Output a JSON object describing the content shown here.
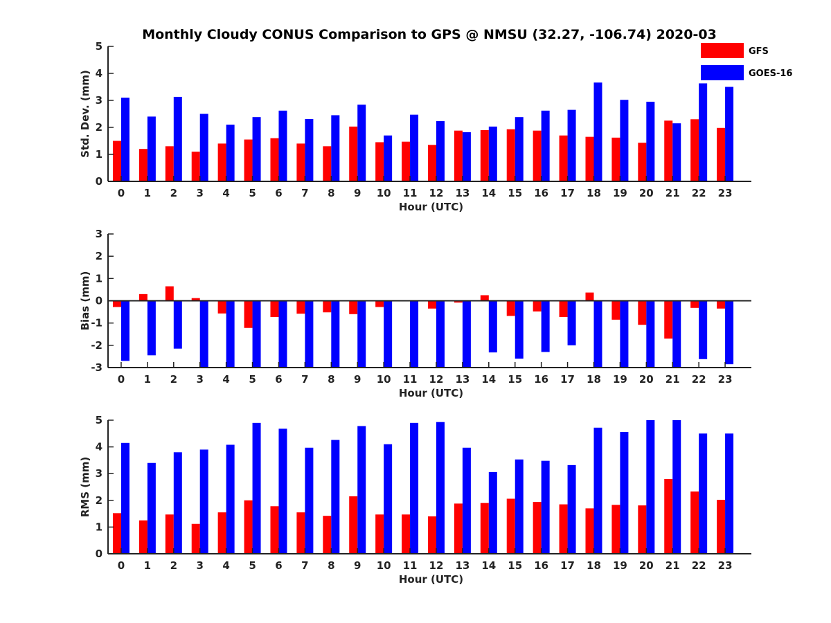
{
  "colors": {
    "gfs": "#ff0000",
    "goes": "#0000ff",
    "axis": "#222222"
  },
  "chart_data": [
    {
      "type": "bar",
      "title": "Monthly Cloudy CONUS Comparison to GPS @ NMSU (32.27, -106.74) 2020-03",
      "xlabel": "Hour (UTC)",
      "ylabel": "Std. Dev. (mm)",
      "ylim": [
        0,
        5
      ],
      "yticks": [
        0,
        1,
        2,
        3,
        4,
        5
      ],
      "categories": [
        "0",
        "1",
        "2",
        "3",
        "4",
        "5",
        "6",
        "7",
        "8",
        "9",
        "10",
        "11",
        "12",
        "13",
        "14",
        "15",
        "16",
        "17",
        "18",
        "19",
        "20",
        "21",
        "22",
        "23"
      ],
      "legend": "top-right",
      "series": [
        {
          "name": "GFS",
          "color": "#ff0000",
          "values": [
            1.5,
            1.2,
            1.3,
            1.1,
            1.4,
            1.55,
            1.6,
            1.4,
            1.3,
            2.03,
            1.45,
            1.47,
            1.35,
            1.88,
            1.9,
            1.93,
            1.88,
            1.7,
            1.65,
            1.62,
            1.43,
            2.25,
            2.3,
            1.98
          ]
        },
        {
          "name": "GOES-16",
          "color": "#0000ff",
          "values": [
            3.1,
            2.4,
            3.13,
            2.5,
            2.1,
            2.38,
            2.62,
            2.31,
            2.45,
            2.84,
            1.7,
            2.47,
            2.23,
            1.82,
            2.03,
            2.38,
            2.62,
            2.65,
            3.66,
            3.02,
            2.95,
            2.15,
            3.63,
            3.5
          ]
        }
      ]
    },
    {
      "type": "bar",
      "title": "",
      "xlabel": "Hour (UTC)",
      "ylabel": "Bias (mm)",
      "ylim": [
        -3,
        3
      ],
      "yticks": [
        -3,
        -2,
        -1,
        0,
        1,
        2,
        3
      ],
      "categories": [
        "0",
        "1",
        "2",
        "3",
        "4",
        "5",
        "6",
        "7",
        "8",
        "9",
        "10",
        "11",
        "12",
        "13",
        "14",
        "15",
        "16",
        "17",
        "18",
        "19",
        "20",
        "21",
        "22",
        "23"
      ],
      "series": [
        {
          "name": "GFS",
          "color": "#ff0000",
          "values": [
            -0.28,
            0.3,
            0.65,
            0.12,
            -0.57,
            -1.22,
            -0.73,
            -0.58,
            -0.52,
            -0.6,
            -0.28,
            -0.03,
            -0.35,
            -0.08,
            0.25,
            -0.68,
            -0.48,
            -0.73,
            0.37,
            -0.85,
            -1.08,
            -1.7,
            -0.32,
            -0.35
          ]
        },
        {
          "name": "GOES-16",
          "color": "#0000ff",
          "values": [
            -2.7,
            -2.45,
            -2.15,
            -3.0,
            -3.0,
            -3.0,
            -3.0,
            -3.0,
            -3.0,
            -3.0,
            -3.0,
            -3.0,
            -3.0,
            -3.0,
            -2.32,
            -2.6,
            -2.3,
            -2.0,
            -3.0,
            -3.0,
            -3.0,
            -3.0,
            -2.62,
            -2.85
          ]
        }
      ]
    },
    {
      "type": "bar",
      "title": "",
      "xlabel": "Hour (UTC)",
      "ylabel": "RMS (mm)",
      "ylim": [
        0,
        5
      ],
      "yticks": [
        0,
        1,
        2,
        3,
        4,
        5
      ],
      "categories": [
        "0",
        "1",
        "2",
        "3",
        "4",
        "5",
        "6",
        "7",
        "8",
        "9",
        "10",
        "11",
        "12",
        "13",
        "14",
        "15",
        "16",
        "17",
        "18",
        "19",
        "20",
        "21",
        "22",
        "23"
      ],
      "series": [
        {
          "name": "GFS",
          "color": "#ff0000",
          "values": [
            1.52,
            1.25,
            1.47,
            1.12,
            1.55,
            2.0,
            1.78,
            1.55,
            1.42,
            2.15,
            1.47,
            1.47,
            1.4,
            1.88,
            1.9,
            2.06,
            1.94,
            1.85,
            1.7,
            1.83,
            1.81,
            2.8,
            2.33,
            2.02
          ]
        },
        {
          "name": "GOES-16",
          "color": "#0000ff",
          "values": [
            4.15,
            3.4,
            3.8,
            3.9,
            4.08,
            4.9,
            4.68,
            3.97,
            4.26,
            4.78,
            4.1,
            4.9,
            4.93,
            3.97,
            3.06,
            3.53,
            3.48,
            3.32,
            4.72,
            4.56,
            5.0,
            5.0,
            4.5,
            4.5
          ]
        }
      ]
    }
  ]
}
